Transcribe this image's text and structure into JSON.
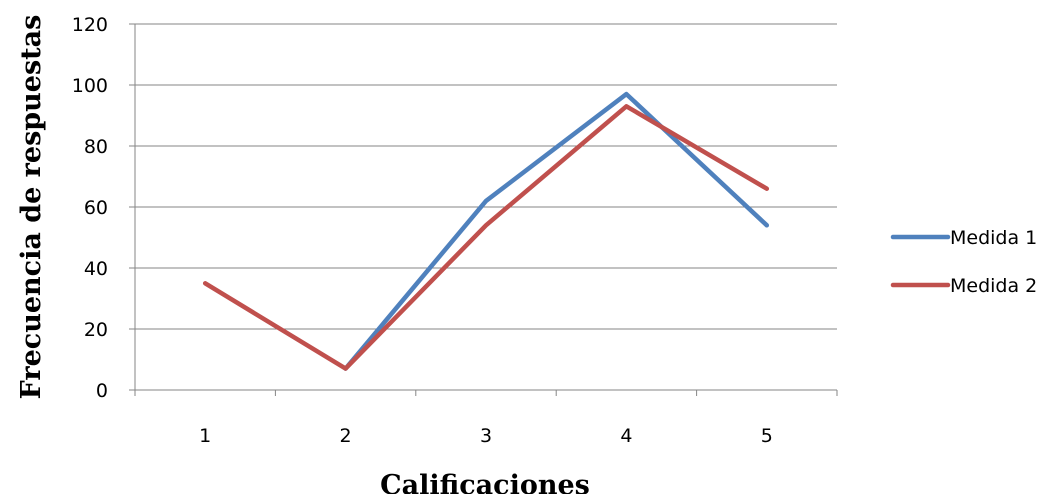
{
  "chart_data": {
    "type": "line",
    "title": "",
    "xlabel": "Calificaciones",
    "ylabel": "Frecuencia de respuestas",
    "categories": [
      "1",
      "2",
      "3",
      "4",
      "5"
    ],
    "ylim": [
      0,
      120
    ],
    "yticks": [
      0,
      20,
      40,
      60,
      80,
      100,
      120
    ],
    "grid": true,
    "legend_position": "right",
    "series": [
      {
        "name": "Medida 1",
        "color": "#4F81BD",
        "values": [
          null,
          7,
          62,
          97,
          54
        ]
      },
      {
        "name": "Medida 2",
        "color": "#C0504D",
        "values": [
          35,
          7,
          54,
          93,
          66
        ]
      }
    ]
  }
}
